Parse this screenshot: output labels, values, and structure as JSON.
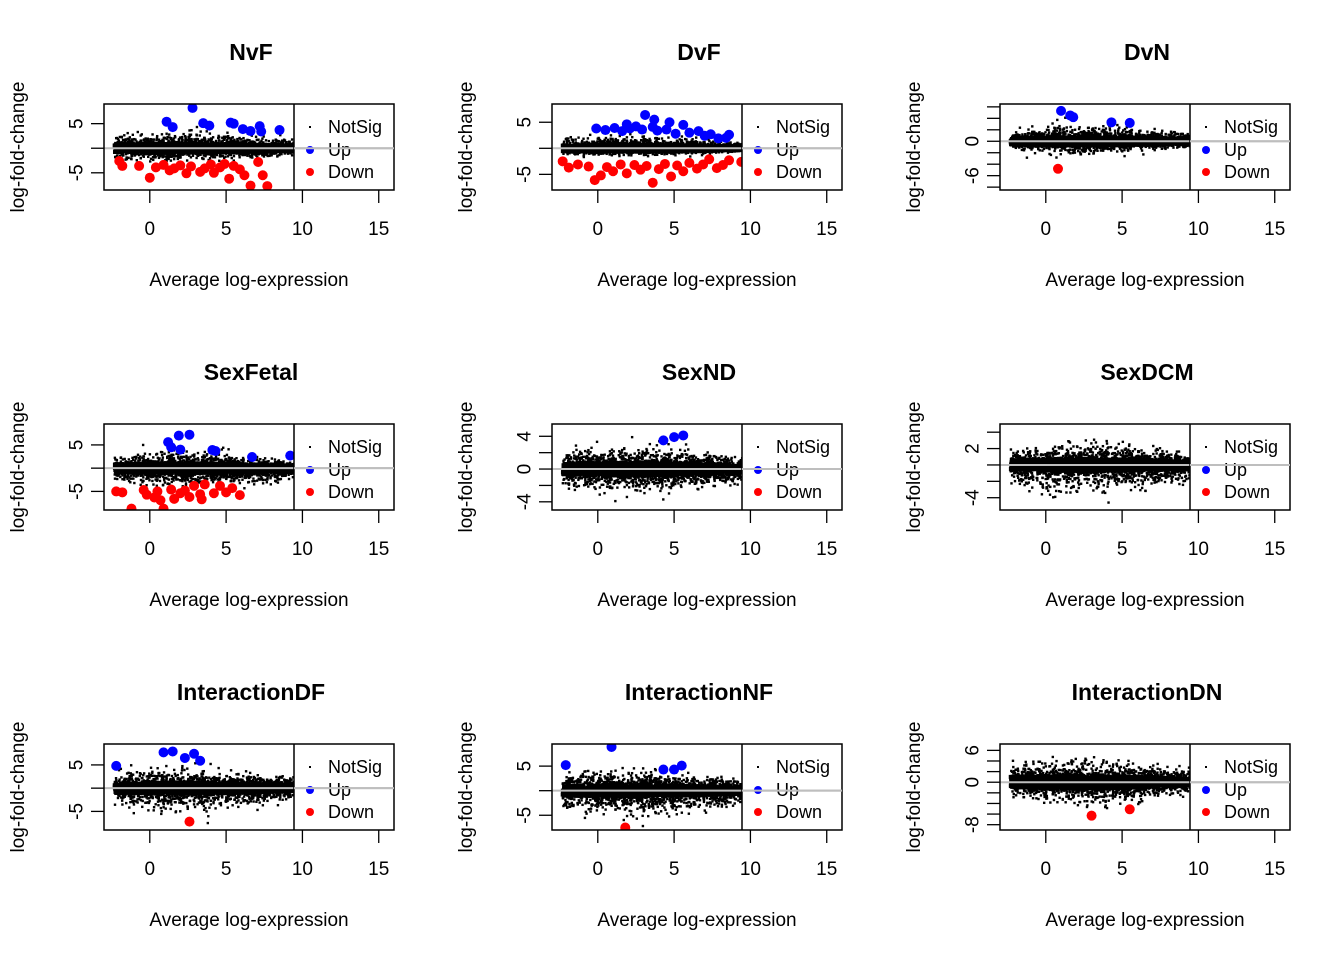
{
  "chart_data": [
    {
      "type": "scatter",
      "title": "NvF",
      "xlabel": "Average log-expression",
      "ylabel": "log-fold-change",
      "xlim": [
        -3,
        16
      ],
      "ylim": [
        -8.5,
        9.0
      ],
      "xticks": [
        0,
        5,
        10,
        15
      ],
      "yticks": [
        -5,
        0,
        5
      ],
      "ytick_labels": [
        "-5",
        "",
        "5"
      ],
      "legend": {
        "position": "right",
        "entries": [
          "NotSig",
          "Up",
          "Down"
        ],
        "colors": [
          "#000000",
          "#0000FF",
          "#FF0000"
        ]
      },
      "reference_line_y": 0,
      "cloud": {
        "x_range": [
          -2.3,
          9.7
        ],
        "upper": 3.2,
        "lower": -2.6,
        "skew": 0
      },
      "series": [
        {
          "name": "Up",
          "color": "#0000FF",
          "points": [
            [
              1.1,
              5.4
            ],
            [
              1.5,
              4.3
            ],
            [
              2.8,
              8.2
            ],
            [
              3.5,
              5.1
            ],
            [
              3.9,
              4.6
            ],
            [
              5.3,
              5.2
            ],
            [
              5.5,
              5.0
            ],
            [
              6.1,
              3.9
            ],
            [
              6.6,
              3.5
            ],
            [
              7.2,
              4.5
            ],
            [
              7.3,
              3.4
            ],
            [
              8.5,
              3.7
            ]
          ]
        },
        {
          "name": "Down",
          "color": "#FF0000",
          "points": [
            [
              -2.0,
              -2.6
            ],
            [
              -1.8,
              -3.6
            ],
            [
              -0.7,
              -3.6
            ],
            [
              0.0,
              -6.0
            ],
            [
              0.4,
              -3.9
            ],
            [
              0.9,
              -3.4
            ],
            [
              1.3,
              -4.5
            ],
            [
              1.6,
              -4.1
            ],
            [
              2.0,
              -3.5
            ],
            [
              2.4,
              -5.1
            ],
            [
              2.7,
              -3.7
            ],
            [
              3.3,
              -4.8
            ],
            [
              3.6,
              -4.1
            ],
            [
              4.0,
              -3.3
            ],
            [
              4.2,
              -5.0
            ],
            [
              4.6,
              -3.9
            ],
            [
              4.9,
              -3.2
            ],
            [
              5.2,
              -6.2
            ],
            [
              5.5,
              -3.6
            ],
            [
              5.9,
              -4.3
            ],
            [
              6.2,
              -5.5
            ],
            [
              6.6,
              -7.6
            ],
            [
              7.1,
              -2.8
            ],
            [
              7.4,
              -5.5
            ],
            [
              7.7,
              -7.7
            ]
          ]
        }
      ]
    },
    {
      "type": "scatter",
      "title": "DvF",
      "xlabel": "Average log-expression",
      "ylabel": "log-fold-change",
      "xlim": [
        -3,
        16
      ],
      "ylim": [
        -8.0,
        8.5
      ],
      "xticks": [
        0,
        5,
        10,
        15
      ],
      "yticks": [
        -5,
        0,
        5
      ],
      "ytick_labels": [
        "-5",
        "",
        "5"
      ],
      "legend": {
        "position": "right",
        "entries": [
          "NotSig",
          "Up",
          "Down"
        ],
        "colors": [
          "#000000",
          "#0000FF",
          "#FF0000"
        ]
      },
      "reference_line_y": 0,
      "cloud": {
        "x_range": [
          -2.3,
          9.7
        ],
        "upper": 2.3,
        "lower": -1.4,
        "skew": 0
      },
      "series": [
        {
          "name": "Up",
          "color": "#0000FF",
          "points": [
            [
              -0.1,
              3.8
            ],
            [
              0.5,
              3.5
            ],
            [
              1.1,
              3.9
            ],
            [
              1.6,
              3.3
            ],
            [
              2.1,
              3.8
            ],
            [
              2.5,
              4.2
            ],
            [
              2.9,
              3.6
            ],
            [
              3.1,
              6.4
            ],
            [
              3.6,
              4.1
            ],
            [
              3.9,
              3.4
            ],
            [
              4.5,
              3.6
            ],
            [
              4.7,
              5.0
            ],
            [
              5.1,
              2.8
            ],
            [
              5.6,
              4.5
            ],
            [
              6.0,
              3.0
            ],
            [
              6.6,
              3.3
            ],
            [
              7.0,
              2.4
            ],
            [
              7.4,
              2.7
            ],
            [
              7.9,
              1.9
            ],
            [
              8.4,
              2.0
            ],
            [
              8.6,
              2.6
            ],
            [
              3.7,
              5.5
            ],
            [
              1.9,
              4.6
            ]
          ]
        },
        {
          "name": "Down",
          "color": "#FF0000",
          "points": [
            [
              -2.3,
              -2.5
            ],
            [
              -1.9,
              -3.7
            ],
            [
              -1.3,
              -3.1
            ],
            [
              -0.6,
              -3.5
            ],
            [
              -0.2,
              -6.1
            ],
            [
              0.2,
              -5.2
            ],
            [
              0.6,
              -3.6
            ],
            [
              1.0,
              -4.4
            ],
            [
              1.5,
              -3.1
            ],
            [
              1.9,
              -4.8
            ],
            [
              2.4,
              -3.2
            ],
            [
              2.8,
              -4.1
            ],
            [
              3.2,
              -3.4
            ],
            [
              3.6,
              -6.6
            ],
            [
              4.0,
              -4.0
            ],
            [
              4.4,
              -3.0
            ],
            [
              4.8,
              -5.4
            ],
            [
              5.2,
              -3.3
            ],
            [
              5.6,
              -4.4
            ],
            [
              6.0,
              -2.8
            ],
            [
              6.5,
              -3.9
            ],
            [
              6.9,
              -3.1
            ],
            [
              7.3,
              -2.1
            ],
            [
              7.8,
              -3.8
            ],
            [
              8.2,
              -3.2
            ],
            [
              8.6,
              -2.3
            ],
            [
              9.4,
              -2.6
            ]
          ]
        }
      ]
    },
    {
      "type": "scatter",
      "title": "DvN",
      "xlabel": "Average log-expression",
      "ylabel": "log-fold-change",
      "xlim": [
        -3,
        16
      ],
      "ylim": [
        -8.5,
        6.5
      ],
      "xticks": [
        0,
        5,
        10,
        15
      ],
      "yticks": [
        -8,
        -6,
        -4,
        -2,
        0,
        2,
        4,
        6
      ],
      "ytick_labels": [
        "",
        "-6",
        "",
        "",
        "0",
        "",
        "",
        ""
      ],
      "legend": {
        "position": "right",
        "entries": [
          "NotSig",
          "Up",
          "Down"
        ],
        "colors": [
          "#000000",
          "#0000FF",
          "#FF0000"
        ]
      },
      "reference_line_y": 0,
      "cloud": {
        "x_range": [
          -2.3,
          9.7
        ],
        "upper": 2.6,
        "lower": -2.2,
        "skew": 0
      },
      "series": [
        {
          "name": "Up",
          "color": "#0000FF",
          "points": [
            [
              1.0,
              5.3
            ],
            [
              1.6,
              4.5
            ],
            [
              1.8,
              4.2
            ],
            [
              4.3,
              3.3
            ],
            [
              5.5,
              3.2
            ]
          ]
        },
        {
          "name": "Down",
          "color": "#FF0000",
          "points": [
            [
              0.8,
              -4.8
            ]
          ]
        }
      ]
    },
    {
      "type": "scatter",
      "title": "SexFetal",
      "xlabel": "Average log-expression",
      "ylabel": "log-fold-change",
      "xlim": [
        -3,
        16
      ],
      "ylim": [
        -9.0,
        9.5
      ],
      "xticks": [
        0,
        5,
        10,
        15
      ],
      "yticks": [
        -5,
        0,
        5
      ],
      "ytick_labels": [
        "-5",
        "",
        "5"
      ],
      "legend": {
        "position": "right",
        "entries": [
          "NotSig",
          "Up",
          "Down"
        ],
        "colors": [
          "#000000",
          "#0000FF",
          "#FF0000"
        ]
      },
      "reference_line_y": 0,
      "cloud": {
        "x_range": [
          -2.3,
          9.7
        ],
        "upper": 3.6,
        "lower": -4.0,
        "skew": 0.5
      },
      "series": [
        {
          "name": "Up",
          "color": "#0000FF",
          "points": [
            [
              1.2,
              5.6
            ],
            [
              1.4,
              4.5
            ],
            [
              1.9,
              7.0
            ],
            [
              2.0,
              4.0
            ],
            [
              2.6,
              7.2
            ],
            [
              4.1,
              3.9
            ],
            [
              4.3,
              3.7
            ],
            [
              6.7,
              2.4
            ],
            [
              9.2,
              2.7
            ]
          ]
        },
        {
          "name": "Down",
          "color": "#FF0000",
          "points": [
            [
              -2.2,
              -5.0
            ],
            [
              -1.8,
              -5.2
            ],
            [
              -1.2,
              -8.7
            ],
            [
              -0.4,
              -4.7
            ],
            [
              -0.2,
              -5.7
            ],
            [
              0.3,
              -6.3
            ],
            [
              0.5,
              -5.0
            ],
            [
              0.7,
              -6.9
            ],
            [
              0.9,
              -8.7
            ],
            [
              1.4,
              -4.6
            ],
            [
              1.6,
              -6.6
            ],
            [
              2.0,
              -5.4
            ],
            [
              2.3,
              -4.8
            ],
            [
              2.6,
              -6.2
            ],
            [
              2.9,
              -3.8
            ],
            [
              3.3,
              -5.6
            ],
            [
              3.6,
              -3.5
            ],
            [
              3.4,
              -6.7
            ],
            [
              4.2,
              -5.4
            ],
            [
              4.6,
              -3.8
            ],
            [
              5.0,
              -5.2
            ],
            [
              5.4,
              -4.3
            ],
            [
              5.9,
              -5.8
            ]
          ]
        }
      ]
    },
    {
      "type": "scatter",
      "title": "SexND",
      "xlabel": "Average log-expression",
      "ylabel": "log-fold-change",
      "xlim": [
        -3,
        16
      ],
      "ylim": [
        -5.0,
        5.5
      ],
      "xticks": [
        0,
        5,
        10,
        15
      ],
      "yticks": [
        -4,
        -2,
        0,
        2,
        4
      ],
      "ytick_labels": [
        "-4",
        "",
        "0",
        "",
        "4"
      ],
      "legend": {
        "position": "right",
        "entries": [
          "NotSig",
          "Up",
          "Down"
        ],
        "colors": [
          "#000000",
          "#0000FF",
          "#FF0000"
        ]
      },
      "reference_line_y": 0,
      "cloud": {
        "x_range": [
          -2.3,
          9.7
        ],
        "upper": 2.8,
        "lower": -3.0,
        "skew": 0
      },
      "series": [
        {
          "name": "Up",
          "color": "#0000FF",
          "points": [
            [
              4.3,
              3.5
            ],
            [
              5.0,
              3.9
            ],
            [
              5.6,
              4.1
            ]
          ]
        },
        {
          "name": "Down",
          "color": "#FF0000",
          "points": []
        }
      ]
    },
    {
      "type": "scatter",
      "title": "SexDCM",
      "xlabel": "Average log-expression",
      "ylabel": "log-fold-change",
      "xlim": [
        -3,
        16
      ],
      "ylim": [
        -5.5,
        5.0
      ],
      "xticks": [
        0,
        5,
        10,
        15
      ],
      "yticks": [
        -4,
        -2,
        0,
        2,
        4
      ],
      "ytick_labels": [
        "-4",
        "",
        "",
        "2",
        ""
      ],
      "legend": {
        "position": "right",
        "entries": [
          "NotSig",
          "Up",
          "Down"
        ],
        "colors": [
          "#000000",
          "#0000FF",
          "#FF0000"
        ]
      },
      "reference_line_y": 0,
      "cloud": {
        "x_range": [
          -2.3,
          9.7
        ],
        "upper": 2.6,
        "lower": -3.4,
        "skew": 0
      },
      "series": [
        {
          "name": "Up",
          "color": "#0000FF",
          "points": []
        },
        {
          "name": "Down",
          "color": "#FF0000",
          "points": []
        }
      ]
    },
    {
      "type": "scatter",
      "title": "InteractionDF",
      "xlabel": "Average log-expression",
      "ylabel": "log-fold-change",
      "xlim": [
        -3,
        16
      ],
      "ylim": [
        -9.0,
        9.5
      ],
      "xticks": [
        0,
        5,
        10,
        15
      ],
      "yticks": [
        -5,
        0,
        5
      ],
      "ytick_labels": [
        "-5",
        "",
        "5"
      ],
      "legend": {
        "position": "right",
        "entries": [
          "NotSig",
          "Up",
          "Down"
        ],
        "colors": [
          "#000000",
          "#0000FF",
          "#FF0000"
        ]
      },
      "reference_line_y": 0,
      "cloud": {
        "x_range": [
          -2.3,
          9.7
        ],
        "upper": 4.2,
        "lower": -4.8,
        "skew": 0
      },
      "series": [
        {
          "name": "Up",
          "color": "#0000FF",
          "points": [
            [
              -2.2,
              4.8
            ],
            [
              0.9,
              7.7
            ],
            [
              1.5,
              7.9
            ],
            [
              2.3,
              6.5
            ],
            [
              2.9,
              7.4
            ],
            [
              3.3,
              5.9
            ]
          ]
        },
        {
          "name": "Down",
          "color": "#FF0000",
          "points": [
            [
              2.6,
              -7.2
            ]
          ]
        }
      ]
    },
    {
      "type": "scatter",
      "title": "InteractionNF",
      "xlabel": "Average log-expression",
      "ylabel": "log-fold-change",
      "xlim": [
        -3,
        16
      ],
      "ylim": [
        -8.0,
        9.5
      ],
      "xticks": [
        0,
        5,
        10,
        15
      ],
      "yticks": [
        -5,
        0,
        5
      ],
      "ytick_labels": [
        "-5",
        "",
        "5"
      ],
      "legend": {
        "position": "right",
        "entries": [
          "NotSig",
          "Up",
          "Down"
        ],
        "colors": [
          "#000000",
          "#0000FF",
          "#FF0000"
        ]
      },
      "reference_line_y": 0,
      "cloud": {
        "x_range": [
          -2.3,
          9.7
        ],
        "upper": 4.0,
        "lower": -5.0,
        "skew": 0
      },
      "series": [
        {
          "name": "Up",
          "color": "#0000FF",
          "points": [
            [
              -2.1,
              5.2
            ],
            [
              0.9,
              8.9
            ],
            [
              4.3,
              4.3
            ],
            [
              5.0,
              4.3
            ],
            [
              5.5,
              5.1
            ]
          ]
        },
        {
          "name": "Down",
          "color": "#FF0000",
          "points": [
            [
              1.8,
              -7.5
            ]
          ]
        }
      ]
    },
    {
      "type": "scatter",
      "title": "InteractionDN",
      "xlabel": "Average log-expression",
      "ylabel": "log-fold-change",
      "xlim": [
        -3,
        16
      ],
      "ylim": [
        -9.0,
        7.2
      ],
      "xticks": [
        0,
        5,
        10,
        15
      ],
      "yticks": [
        -8,
        -6,
        -4,
        -2,
        0,
        2,
        4,
        6
      ],
      "ytick_labels": [
        "-8",
        "",
        "",
        "",
        "0",
        "",
        "",
        "6"
      ],
      "legend": {
        "position": "right",
        "entries": [
          "NotSig",
          "Up",
          "Down"
        ],
        "colors": [
          "#000000",
          "#0000FF",
          "#FF0000"
        ]
      },
      "reference_line_y": 0,
      "cloud": {
        "x_range": [
          -2.3,
          9.7
        ],
        "upper": 4.2,
        "lower": -4.2,
        "skew": 0
      },
      "series": [
        {
          "name": "Up",
          "color": "#0000FF",
          "points": []
        },
        {
          "name": "Down",
          "color": "#FF0000",
          "points": [
            [
              3.0,
              -6.3
            ],
            [
              5.5,
              -5.1
            ]
          ]
        }
      ]
    }
  ]
}
